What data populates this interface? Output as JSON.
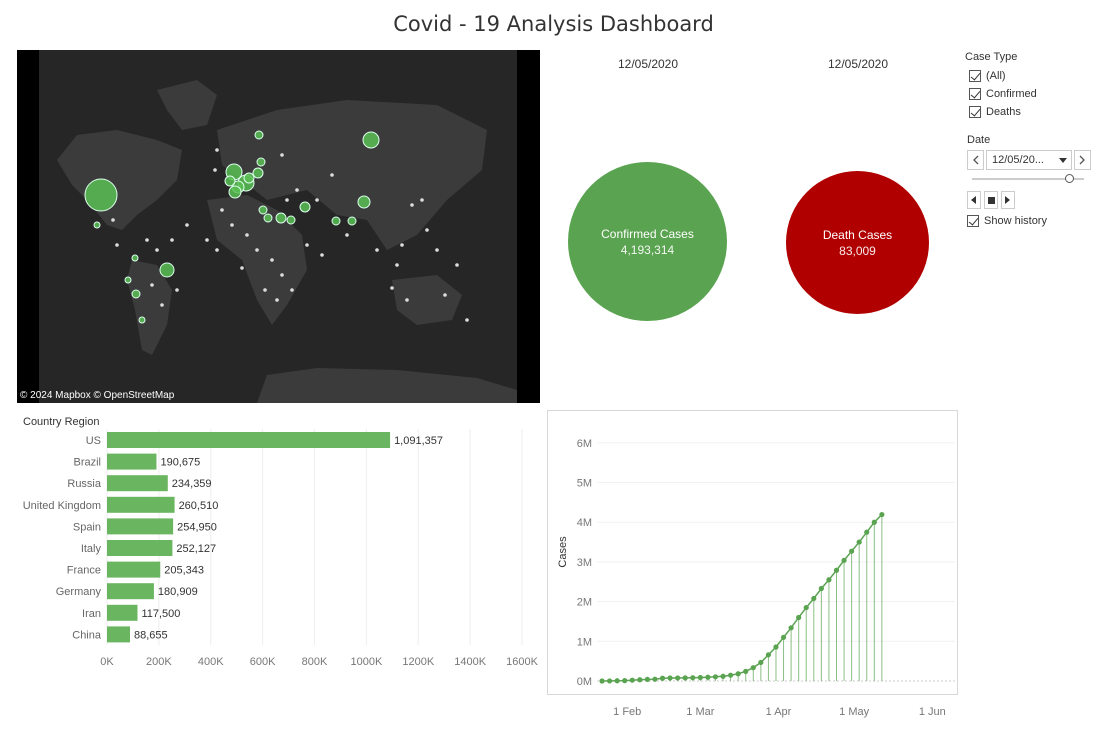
{
  "dashboard": {
    "title": "Covid - 19 Analysis Dashboard"
  },
  "map": {
    "credit": "© 2024 Mapbox © OpenStreetMap",
    "bubble_color": "#5bbf55"
  },
  "kpis": {
    "confirmed": {
      "date": "12/05/2020",
      "label": "Confirmed Cases",
      "value": "4,193,314",
      "color": "#5aa350"
    },
    "deaths": {
      "date": "12/05/2020",
      "label": "Death Cases",
      "value": "83,009",
      "color": "#b00000"
    }
  },
  "filters": {
    "case_type": {
      "title": "Case Type",
      "options": [
        {
          "label": "(All)",
          "checked": true
        },
        {
          "label": "Confirmed",
          "checked": true
        },
        {
          "label": "Deaths",
          "checked": true
        }
      ]
    },
    "date": {
      "title": "Date",
      "value": "12/05/20...",
      "show_history_label": "Show history",
      "show_history": true
    }
  },
  "chart_data": [
    {
      "type": "bar",
      "orientation": "horizontal",
      "header": "Country Region",
      "categories": [
        "US",
        "Brazil",
        "Russia",
        "United Kingdom",
        "Spain",
        "Italy",
        "France",
        "Germany",
        "Iran",
        "China"
      ],
      "values": [
        1091357,
        190675,
        234359,
        260510,
        254950,
        252127,
        205343,
        180909,
        117500,
        88655
      ],
      "value_labels": [
        "1,091,357",
        "190,675",
        "234,359",
        "260,510",
        "254,950",
        "252,127",
        "205,343",
        "180,909",
        "117,500",
        "88,655"
      ],
      "xlim": [
        0,
        1600000
      ],
      "xticks": [
        "0K",
        "200K",
        "400K",
        "600K",
        "800K",
        "1000K",
        "1200K",
        "1400K",
        "1600K"
      ],
      "color": "#6ab660",
      "grid": true
    },
    {
      "type": "line",
      "ylabel": "Cases",
      "ylim": [
        0,
        6500000
      ],
      "yticks": [
        "0M",
        "1M",
        "2M",
        "3M",
        "4M",
        "5M",
        "6M"
      ],
      "xticks": [
        "1 Feb",
        "1 Mar",
        "1 Apr",
        "1 May",
        "1 Jun"
      ],
      "xtick_dates": [
        "2020-02-01",
        "2020-03-01",
        "2020-04-01",
        "2020-05-01",
        "2020-06-01"
      ],
      "xlim": [
        "2020-01-22",
        "2020-06-10"
      ],
      "color": "#5aa350",
      "series": [
        {
          "x": [
            "2020-01-22",
            "2020-01-25",
            "2020-01-28",
            "2020-01-31",
            "2020-02-03",
            "2020-02-06",
            "2020-02-09",
            "2020-02-12",
            "2020-02-15",
            "2020-02-18",
            "2020-02-21",
            "2020-02-24",
            "2020-02-27",
            "2020-03-01",
            "2020-03-04",
            "2020-03-07",
            "2020-03-10",
            "2020-03-13",
            "2020-03-16",
            "2020-03-19",
            "2020-03-22",
            "2020-03-25",
            "2020-03-28",
            "2020-03-31",
            "2020-04-03",
            "2020-04-06",
            "2020-04-09",
            "2020-04-12",
            "2020-04-15",
            "2020-04-18",
            "2020-04-21",
            "2020-04-24",
            "2020-04-27",
            "2020-04-30",
            "2020-05-03",
            "2020-05-06",
            "2020-05-09",
            "2020-05-12"
          ],
          "values": [
            600,
            2100,
            5600,
            9900,
            20000,
            31000,
            40000,
            45000,
            69000,
            75000,
            77000,
            79000,
            83000,
            88000,
            95000,
            106000,
            119000,
            146000,
            182000,
            243000,
            336000,
            467000,
            660000,
            857000,
            1100000,
            1340000,
            1600000,
            1850000,
            2080000,
            2330000,
            2550000,
            2790000,
            3040000,
            3270000,
            3500000,
            3750000,
            4000000,
            4193314
          ]
        }
      ]
    }
  ]
}
